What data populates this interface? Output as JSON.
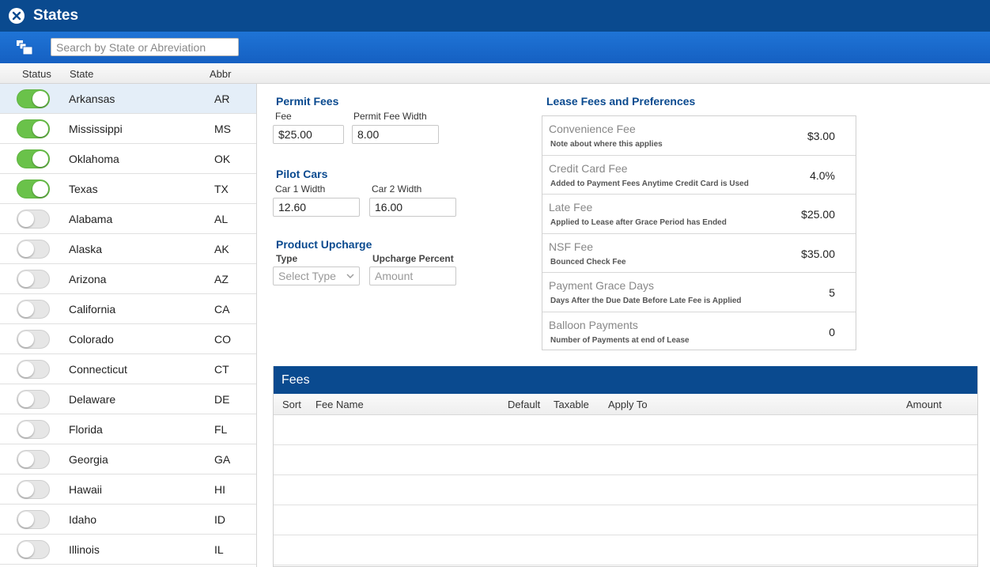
{
  "window": {
    "title": "States"
  },
  "toolbar": {
    "search_placeholder": "Search by State or Abreviation"
  },
  "list_header": {
    "status": "Status",
    "state": "State",
    "abbr": "Abbr"
  },
  "states": [
    {
      "name": "Arkansas",
      "abbr": "AR",
      "active": true
    },
    {
      "name": "Mississippi",
      "abbr": "MS",
      "active": true
    },
    {
      "name": "Oklahoma",
      "abbr": "OK",
      "active": true
    },
    {
      "name": "Texas",
      "abbr": "TX",
      "active": true
    },
    {
      "name": "Alabama",
      "abbr": "AL",
      "active": false
    },
    {
      "name": "Alaska",
      "abbr": "AK",
      "active": false
    },
    {
      "name": "Arizona",
      "abbr": "AZ",
      "active": false
    },
    {
      "name": "California",
      "abbr": "CA",
      "active": false
    },
    {
      "name": "Colorado",
      "abbr": "CO",
      "active": false
    },
    {
      "name": "Connecticut",
      "abbr": "CT",
      "active": false
    },
    {
      "name": "Delaware",
      "abbr": "DE",
      "active": false
    },
    {
      "name": "Florida",
      "abbr": "FL",
      "active": false
    },
    {
      "name": "Georgia",
      "abbr": "GA",
      "active": false
    },
    {
      "name": "Hawaii",
      "abbr": "HI",
      "active": false
    },
    {
      "name": "Idaho",
      "abbr": "ID",
      "active": false
    },
    {
      "name": "Illinois",
      "abbr": "IL",
      "active": false
    }
  ],
  "permit_fees": {
    "title": "Permit Fees",
    "fee_label": "Fee",
    "fee_value": "$25.00",
    "width_label": "Permit Fee Width",
    "width_value": "8.00"
  },
  "pilot_cars": {
    "title": "Pilot Cars",
    "car1_label": "Car 1 Width",
    "car1_value": "12.60",
    "car2_label": "Car 2 Width",
    "car2_value": "16.00"
  },
  "product_upcharge": {
    "title": "Product Upcharge",
    "type_label": "Type",
    "type_placeholder": "Select Type",
    "percent_label": "Upcharge Percent",
    "percent_placeholder": "Amount"
  },
  "lease": {
    "title": "Lease Fees and Preferences",
    "rows": [
      {
        "name": "Convenience Fee",
        "note": "Note about where this applies",
        "value": "$3.00"
      },
      {
        "name": "Credit Card Fee",
        "note": "Added to Payment Fees Anytime Credit Card is Used",
        "value": "4.0%"
      },
      {
        "name": "Late Fee",
        "note": "Applied to Lease after Grace Period has Ended",
        "value": "$25.00"
      },
      {
        "name": "NSF Fee",
        "note": "Bounced Check Fee",
        "value": "$35.00"
      },
      {
        "name": "Payment Grace Days",
        "note": "Days After the Due Date Before Late Fee is Applied",
        "value": "5"
      },
      {
        "name": "Balloon Payments",
        "note": "Number of Payments at end of Lease",
        "value": "0"
      }
    ]
  },
  "fees": {
    "title": "Fees",
    "columns": {
      "sort": "Sort",
      "fee_name": "Fee Name",
      "default": "Default",
      "taxable": "Taxable",
      "apply_to": "Apply To",
      "amount": "Amount"
    },
    "rows": 5
  },
  "colors": {
    "primary": "#0a4a8f",
    "toolbar": "#1f74d6",
    "toggle_on": "#6ac24a"
  }
}
